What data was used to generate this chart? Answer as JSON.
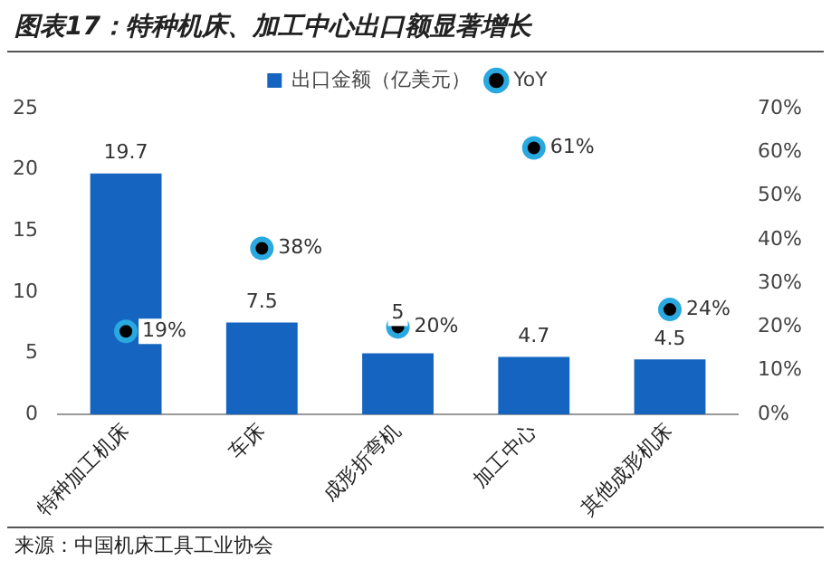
{
  "chart_data": {
    "type": "bar",
    "title": "图表17：特种机床、加工中心出口额显著增长",
    "categories": [
      "特种加工机床",
      "车床",
      "成形折弯机",
      "加工中心",
      "其他成形机床"
    ],
    "series": [
      {
        "name": "出口金额（亿美元）",
        "color": "#1565c0",
        "values": [
          19.7,
          7.5,
          5,
          4.7,
          4.5
        ],
        "value_labels": [
          "19.7",
          "7.5",
          "5",
          "4.7",
          "4.5"
        ]
      },
      {
        "name": "YoY",
        "type": "scatter",
        "axis": "y2",
        "color": "#29a9e0",
        "values": [
          19,
          38,
          20,
          61,
          24
        ],
        "value_labels": [
          "19%",
          "38%",
          "20%",
          "61%",
          "24%"
        ]
      }
    ],
    "ylim": [
      0,
      25
    ],
    "yticks": [
      0,
      5,
      10,
      15,
      20,
      25
    ],
    "y2lim": [
      0,
      70
    ],
    "y2ticks": [
      {
        "value": 0,
        "label": "0%"
      },
      {
        "value": 10,
        "label": "10%"
      },
      {
        "value": 20,
        "label": "20%"
      },
      {
        "value": 30,
        "label": "30%"
      },
      {
        "value": 40,
        "label": "40%"
      },
      {
        "value": 50,
        "label": "50%"
      },
      {
        "value": 60,
        "label": "60%"
      },
      {
        "value": 70,
        "label": "70%"
      }
    ],
    "grid": false,
    "legend": "top",
    "marker": "circle",
    "annotations": [
      "来源：中国机床工具工业协会"
    ]
  }
}
